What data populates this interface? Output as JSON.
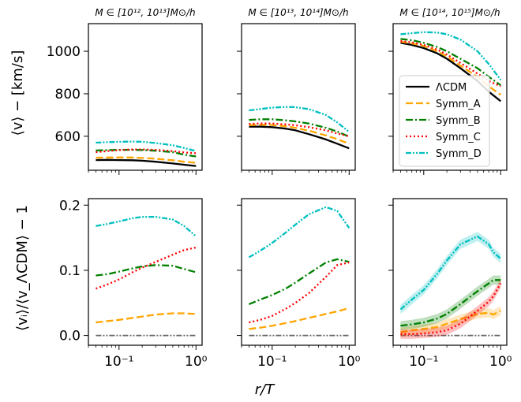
{
  "figure": {
    "panel_titles": [
      "M ∈ [10¹², 10¹³]M⊙/h",
      "M ∈ [10¹³, 10¹⁴]M⊙/h",
      "M ∈ [10¹⁴, 10¹⁵]M⊙/h"
    ],
    "xlabel": "r/T",
    "ylabel_top": "⟨v⟩ − [km/s]",
    "ylabel_bottom": "⟨vᵢ⟩/⟨v_ΛCDM⟩ − 1"
  },
  "chart_data": {
    "type": "line",
    "x_scale": "log",
    "xlim": [
      0.04,
      1.2
    ],
    "x_ticks": [
      {
        "value": 0.1,
        "label": "10⁻¹"
      },
      {
        "value": 1,
        "label": "10⁰"
      }
    ],
    "series_styles": [
      {
        "name": "ΛCDM",
        "color": "#000000",
        "dash": ""
      },
      {
        "name": "Symm_A",
        "color": "#ffa500",
        "dash": "9,4"
      },
      {
        "name": "Symm_B",
        "color": "#008000",
        "dash": "9,3,2,3"
      },
      {
        "name": "Symm_C",
        "color": "#ff0000",
        "dash": "2,3"
      },
      {
        "name": "Symm_D",
        "color": "#00bfbf",
        "dash": "7,2,2,2,2,2"
      }
    ],
    "legend": {
      "placement": "center-left of top-right panel"
    },
    "rows": [
      {
        "ylabel": "⟨v⟩ − [km/s]",
        "ylim": [
          440,
          1130
        ],
        "y_ticks": [
          600,
          800,
          1000
        ],
        "panels": [
          {
            "x": [
              0.05,
              0.07,
              0.1,
              0.15,
              0.2,
              0.3,
              0.5,
              0.7,
              1.0
            ],
            "series": [
              {
                "name": "ΛCDM",
                "values": [
                  488,
                  489,
                  488,
                  487,
                  485,
                  480,
                  472,
                  466,
                  460
                ]
              },
              {
                "name": "Symm_A",
                "values": [
                  499,
                  500,
                  500,
                  500,
                  498,
                  494,
                  487,
                  480,
                  475
                ]
              },
              {
                "name": "Symm_B",
                "values": [
                  533,
                  535,
                  536,
                  536,
                  535,
                  532,
                  525,
                  513,
                  505
                ]
              },
              {
                "name": "Symm_C",
                "values": [
                  525,
                  530,
                  535,
                  538,
                  538,
                  536,
                  530,
                  524,
                  520
                ]
              },
              {
                "name": "Symm_D",
                "values": [
                  570,
                  572,
                  574,
                  575,
                  574,
                  568,
                  558,
                  545,
                  530
                ]
              }
            ]
          },
          {
            "x": [
              0.05,
              0.07,
              0.1,
              0.15,
              0.2,
              0.3,
              0.5,
              0.7,
              1.0
            ],
            "series": [
              {
                "name": "ΛCDM",
                "values": [
                  645,
                  645,
                  643,
                  636,
                  628,
                  610,
                  585,
                  565,
                  543
                ]
              },
              {
                "name": "Symm_A",
                "values": [
                  652,
                  654,
                  653,
                  647,
                  640,
                  626,
                  604,
                  586,
                  565
                ]
              },
              {
                "name": "Symm_B",
                "values": [
                  677,
                  680,
                  680,
                  675,
                  670,
                  660,
                  640,
                  622,
                  598
                ]
              },
              {
                "name": "Symm_C",
                "values": [
                  658,
                  660,
                  660,
                  656,
                  652,
                  643,
                  628,
                  613,
                  600
                ]
              },
              {
                "name": "Symm_D",
                "values": [
                  722,
                  728,
                  735,
                  738,
                  737,
                  728,
                  700,
                  665,
                  620
                ]
              }
            ]
          },
          {
            "x": [
              0.05,
              0.07,
              0.1,
              0.15,
              0.2,
              0.3,
              0.5,
              0.7,
              1.0
            ],
            "series": [
              {
                "name": "ΛCDM",
                "values": [
                  1040,
                  1030,
                  1015,
                  990,
                  965,
                  920,
                  860,
                  810,
                  765
                ]
              },
              {
                "name": "Symm_A",
                "values": [
                  1045,
                  1037,
                  1025,
                  1000,
                  976,
                  932,
                  880,
                  835,
                  795
                ]
              },
              {
                "name": "Symm_B",
                "values": [
                  1058,
                  1052,
                  1040,
                  1020,
                  1000,
                  965,
                  920,
                  880,
                  840
                ]
              },
              {
                "name": "Symm_C",
                "values": [
                  1048,
                  1042,
                  1030,
                  1008,
                  985,
                  945,
                  895,
                  860,
                  835
                ]
              },
              {
                "name": "Symm_D",
                "values": [
                  1080,
                  1085,
                  1090,
                  1088,
                  1080,
                  1055,
                  1000,
                  940,
                  865
                ]
              }
            ]
          }
        ]
      },
      {
        "ylabel": "⟨vᵢ⟩/⟨v_ΛCDM⟩ − 1",
        "ylim": [
          -0.015,
          0.21
        ],
        "y_ticks": [
          0.0,
          0.1,
          0.2
        ],
        "y_tick_labels": [
          "0.0",
          "0.1",
          "0.2"
        ],
        "panels": [
          {
            "x": [
              0.05,
              0.07,
              0.1,
              0.15,
              0.2,
              0.3,
              0.5,
              0.7,
              1.0
            ],
            "series": [
              {
                "name": "ΛCDM",
                "values": [
                  0,
                  0,
                  0,
                  0,
                  0,
                  0,
                  0,
                  0,
                  0
                ]
              },
              {
                "name": "Symm_A",
                "values": [
                  0.02,
                  0.022,
                  0.024,
                  0.027,
                  0.029,
                  0.032,
                  0.034,
                  0.034,
                  0.033
                ]
              },
              {
                "name": "Symm_B",
                "values": [
                  0.092,
                  0.094,
                  0.098,
                  0.103,
                  0.106,
                  0.108,
                  0.107,
                  0.102,
                  0.097
                ]
              },
              {
                "name": "Symm_C",
                "values": [
                  0.072,
                  0.078,
                  0.086,
                  0.097,
                  0.104,
                  0.113,
                  0.124,
                  0.131,
                  0.135
                ]
              },
              {
                "name": "Symm_D",
                "values": [
                  0.168,
                  0.171,
                  0.175,
                  0.18,
                  0.182,
                  0.182,
                  0.178,
                  0.168,
                  0.152
                ]
              }
            ]
          },
          {
            "x": [
              0.05,
              0.07,
              0.1,
              0.15,
              0.2,
              0.3,
              0.5,
              0.7,
              1.0
            ],
            "series": [
              {
                "name": "ΛCDM",
                "values": [
                  0,
                  0,
                  0,
                  0,
                  0,
                  0,
                  0,
                  0,
                  0
                ]
              },
              {
                "name": "Symm_A",
                "values": [
                  0.01,
                  0.012,
                  0.015,
                  0.019,
                  0.022,
                  0.027,
                  0.033,
                  0.037,
                  0.042
                ]
              },
              {
                "name": "Symm_B",
                "values": [
                  0.048,
                  0.055,
                  0.062,
                  0.072,
                  0.081,
                  0.095,
                  0.112,
                  0.117,
                  0.113
                ]
              },
              {
                "name": "Symm_C",
                "values": [
                  0.02,
                  0.024,
                  0.03,
                  0.041,
                  0.05,
                  0.065,
                  0.09,
                  0.108,
                  0.112
                ]
              },
              {
                "name": "Symm_D",
                "values": [
                  0.12,
                  0.13,
                  0.142,
                  0.158,
                  0.17,
                  0.186,
                  0.197,
                  0.191,
                  0.165
                ]
              }
            ]
          },
          {
            "x": [
              0.05,
              0.07,
              0.1,
              0.15,
              0.2,
              0.3,
              0.5,
              0.7,
              0.8,
              1.0
            ],
            "series": [
              {
                "name": "ΛCDM",
                "values": [
                  0,
                  0,
                  0,
                  0,
                  0,
                  0,
                  0,
                  0,
                  0,
                  0
                ]
              },
              {
                "name": "Symm_A",
                "values": [
                  0.005,
                  0.008,
                  0.01,
                  0.013,
                  0.018,
                  0.025,
                  0.033,
                  0.035,
                  0.032,
                  0.038
                ]
              },
              {
                "name": "Symm_B",
                "values": [
                  0.015,
                  0.017,
                  0.02,
                  0.026,
                  0.033,
                  0.048,
                  0.068,
                  0.08,
                  0.085,
                  0.085
                ]
              },
              {
                "name": "Symm_C",
                "values": [
                  0.002,
                  0.002,
                  0.003,
                  0.005,
                  0.008,
                  0.018,
                  0.038,
                  0.052,
                  0.06,
                  0.08
                ]
              },
              {
                "name": "Symm_D",
                "values": [
                  0.04,
                  0.055,
                  0.07,
                  0.095,
                  0.115,
                  0.14,
                  0.152,
                  0.14,
                  0.128,
                  0.118
                ]
              }
            ]
          }
        ]
      }
    ]
  }
}
